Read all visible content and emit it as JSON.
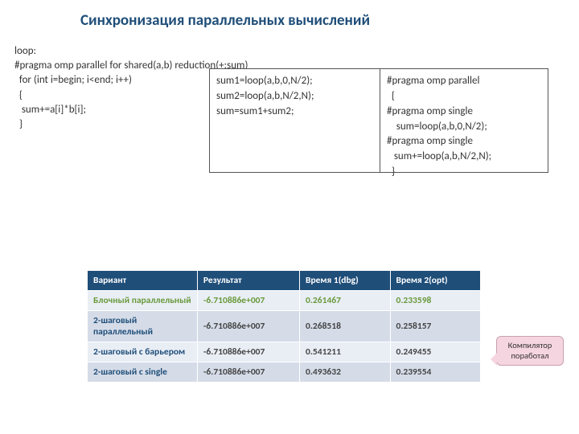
{
  "title": "Синхронизация параллельных вычислений",
  "code_main": "loop:\n#pragma omp parallel for shared(a,b) reduction(+:sum)\n  for (int i=begin; i<end; i++)\n  {\n   sum+=a[i]*b[i];\n  }",
  "box_left": "sum1=loop(a,b,0,N/2);\nsum2=loop(a,b,N/2,N);\nsum=sum1+sum2;",
  "box_right": "#pragma omp parallel\n  {\n#pragma omp single\n    sum=loop(a,b,0,N/2);\n#pragma omp single\n   sum+=loop(a,b,N/2,N);\n  }",
  "table": {
    "headers": [
      "Вариант",
      "Результат",
      "Время 1(dbg)",
      "Время 2(opt)"
    ],
    "col_widths": [
      "28%",
      "26%",
      "23%",
      "23%"
    ],
    "rows": [
      {
        "cells": [
          "Блочный параллельный",
          "-6.710886e+007",
          "0.261467",
          "0.233598"
        ],
        "highlight": true
      },
      {
        "cells": [
          "2-шаговый параллельный",
          "-6.710886e+007",
          "0.268518",
          "0.258157"
        ],
        "highlight": false
      },
      {
        "cells": [
          "2-шаговый с барьером",
          "-6.710886e+007",
          "0.541211",
          "0.249455"
        ],
        "highlight": false
      },
      {
        "cells": [
          "2-шаговый с single",
          "-6.710886e+007",
          "0.493632",
          "0.239554"
        ],
        "highlight": false
      }
    ]
  },
  "callout": "Компилятор поработал"
}
